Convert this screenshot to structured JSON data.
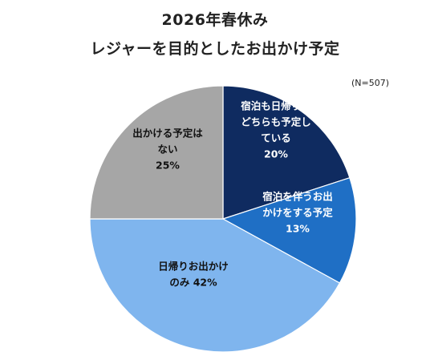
{
  "chart_data": {
    "type": "pie",
    "title_line1": "2026年春休み",
    "title_line2": "レジャーを目的としたお出かけ予定",
    "note": "(N=507)",
    "slices": [
      {
        "label_lines": [
          "宿泊も日帰りも",
          "どちらも予定し",
          "ている"
        ],
        "value": 20,
        "value_text": "20%",
        "color": "#0f2b60",
        "text_color": "#ffffff"
      },
      {
        "label_lines": [
          "宿泊を伴うお出",
          "かけをする予定"
        ],
        "value": 13,
        "value_text": "13%",
        "color": "#1f6fc5",
        "text_color": "#ffffff"
      },
      {
        "label_lines": [
          "日帰りお出かけ",
          "のみ 42%"
        ],
        "value": 42,
        "value_text": "",
        "color": "#7fb5ee",
        "text_color": "#111111"
      },
      {
        "label_lines": [
          "出かける予定は",
          "ない"
        ],
        "value": 25,
        "value_text": "25%",
        "color": "#a6a6a6",
        "text_color": "#111111"
      }
    ]
  }
}
